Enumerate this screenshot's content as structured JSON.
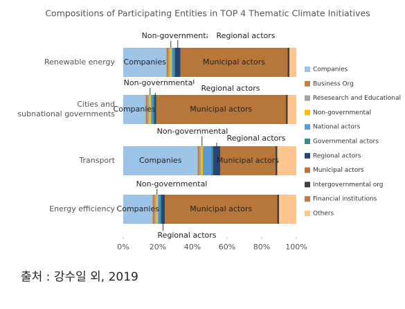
{
  "chart_data": {
    "type": "stacked_barh",
    "title": "Compositions of Participating Entities in TOP 4 Thematic Climate Initiatives",
    "categories": [
      "Renewable energy",
      "Cities and\nsubnational governments",
      "Transport",
      "Energy efficiency"
    ],
    "series": [
      {
        "name": "Companies",
        "color": "#9dc3e6",
        "values": [
          25,
          13,
          43,
          17
        ]
      },
      {
        "name": "Business Org",
        "color": "#c5803f",
        "values": [
          1,
          1,
          1,
          1
        ]
      },
      {
        "name": "Resesearch and Educational",
        "color": "#a5a5a5",
        "values": [
          1,
          1,
          1,
          1
        ]
      },
      {
        "name": "Non-governmental",
        "color": "#ffc000",
        "values": [
          1,
          1,
          1,
          1
        ]
      },
      {
        "name": "National actors",
        "color": "#5b9bd5",
        "values": [
          1,
          1,
          5,
          1
        ]
      },
      {
        "name": "Governmental actors",
        "color": "#3f8a8c",
        "values": [
          1,
          1,
          1,
          1
        ]
      },
      {
        "name": "Regional actors",
        "color": "#264478",
        "values": [
          3,
          1,
          4,
          2
        ]
      },
      {
        "name": "Municipal actors",
        "color": "#b8773a",
        "values": [
          62,
          75,
          32,
          65
        ]
      },
      {
        "name": "Intergovernmental org",
        "color": "#404040",
        "values": [
          1,
          1,
          1,
          1
        ]
      },
      {
        "name": "Financial institutions",
        "color": "#c07a48",
        "values": [
          0,
          0,
          0,
          0
        ]
      },
      {
        "name": "Others",
        "color": "#ffc58f",
        "values": [
          4,
          5,
          11,
          10
        ]
      }
    ],
    "xlim": [
      0,
      100
    ],
    "xticks": [
      {
        "value": 0,
        "label": "0%"
      },
      {
        "value": 20,
        "label": "20%"
      },
      {
        "value": 40,
        "label": "40%"
      },
      {
        "value": 60,
        "label": "60%"
      },
      {
        "value": 80,
        "label": "80%"
      },
      {
        "value": 100,
        "label": "100%"
      }
    ],
    "legend": "right",
    "source": "출처 : 강수일 외, 2019"
  }
}
